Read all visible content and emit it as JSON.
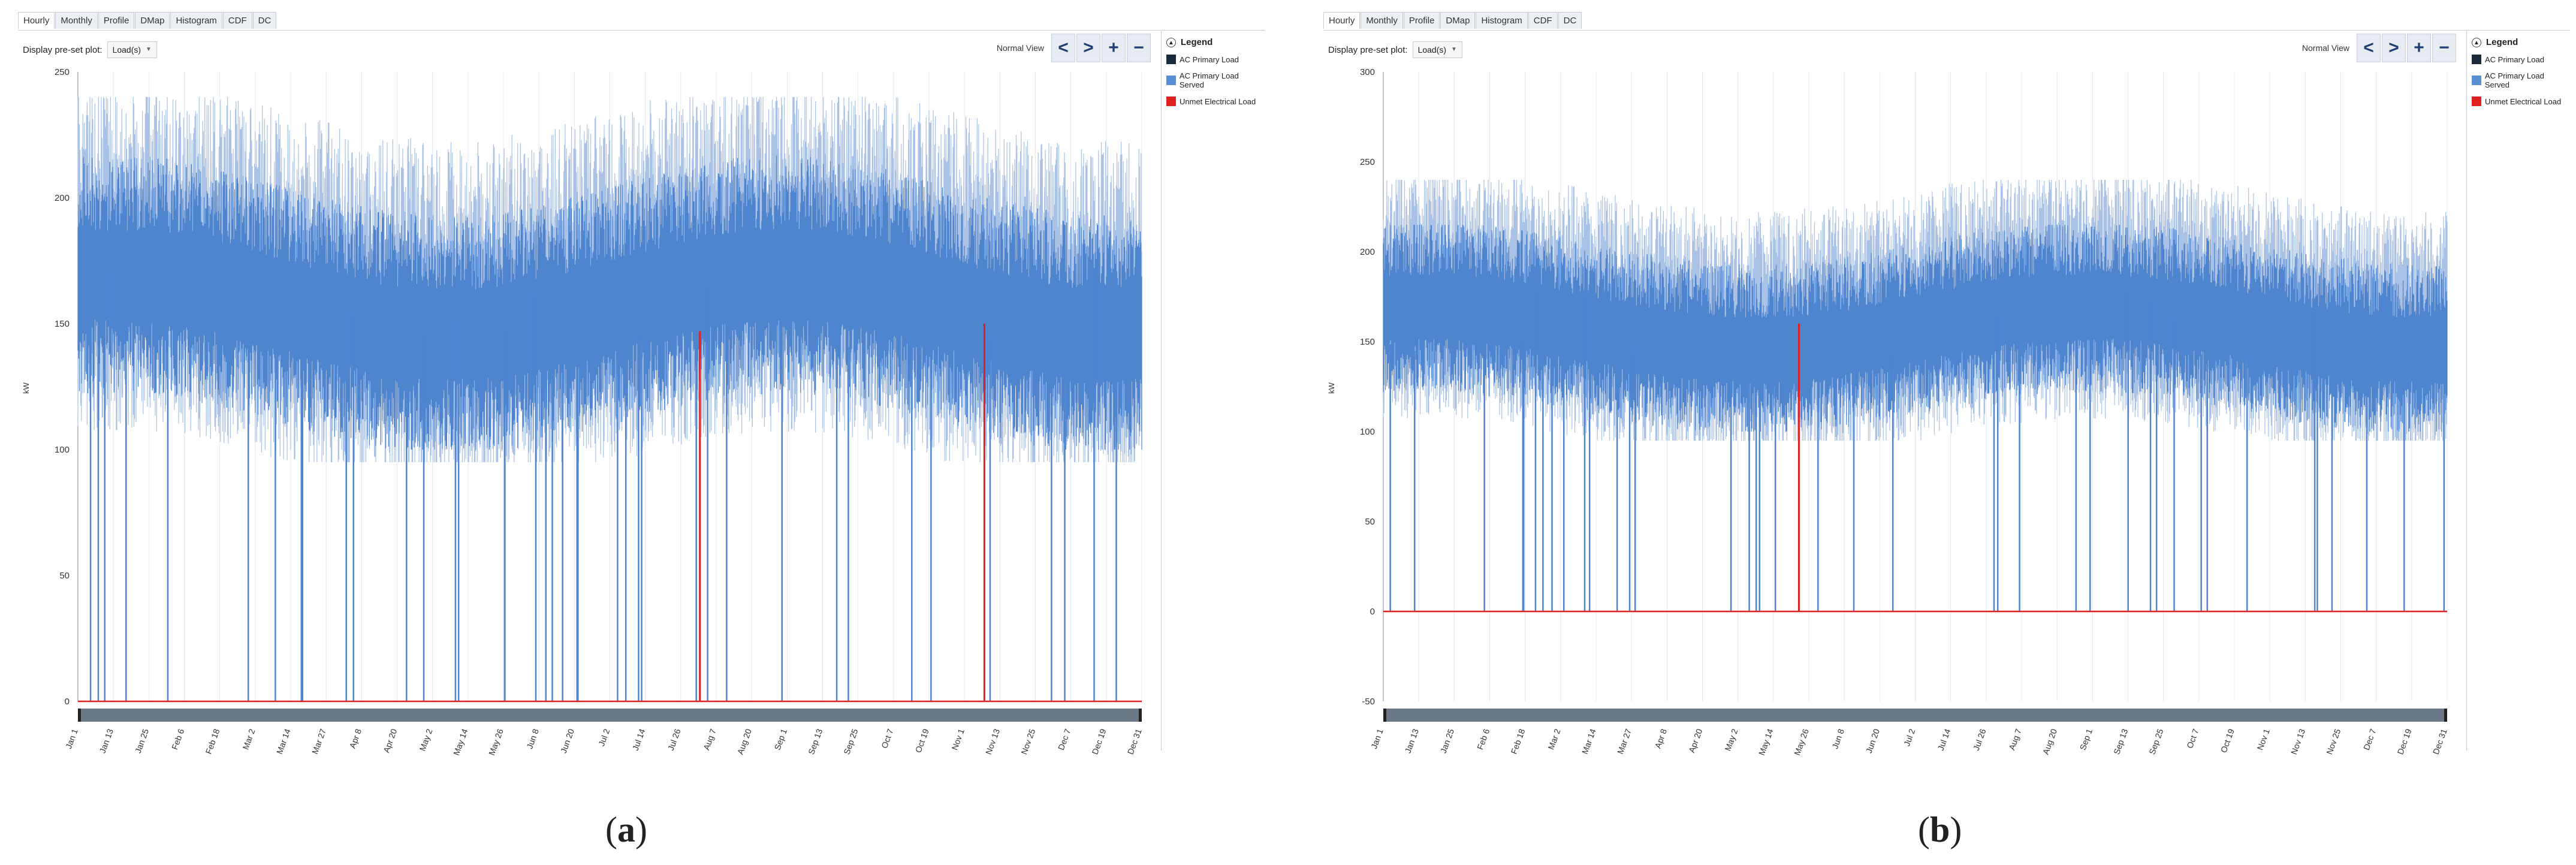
{
  "panels": [
    {
      "id": "a",
      "tabs": [
        "Hourly",
        "Monthly",
        "Profile",
        "DMap",
        "Histogram",
        "CDF",
        "DC"
      ],
      "active_tab": "Hourly",
      "preset_label": "Display pre-set plot:",
      "preset_value": "Load(s)",
      "view_label": "Normal View",
      "nav_buttons": [
        "<",
        ">",
        "+",
        "−"
      ],
      "legend_title": "Legend",
      "legend": [
        {
          "label": "AC Primary Load",
          "color": "#1b2a3a"
        },
        {
          "label": "AC Primary Load Served",
          "color": "#5b8fd4"
        },
        {
          "label": "Unmet Electrical Load",
          "color": "#e02020"
        }
      ],
      "y_axis_title": "kW",
      "caption": "a",
      "chart_data": {
        "type": "line",
        "title": "",
        "xlabel": "",
        "ylabel": "kW",
        "ylim": [
          0,
          250
        ],
        "yticks": [
          0,
          50,
          100,
          150,
          200,
          250
        ],
        "x_tick_labels": [
          "Jan 1",
          "Jan 13",
          "Jan 25",
          "Feb 6",
          "Feb 18",
          "Mar 2",
          "Mar 14",
          "Mar 27",
          "Apr 8",
          "Apr 20",
          "May 2",
          "May 14",
          "May 26",
          "Jun 8",
          "Jun 20",
          "Jul 2",
          "Jul 14",
          "Jul 26",
          "Aug 7",
          "Aug 20",
          "Sep 1",
          "Sep 13",
          "Sep 25",
          "Oct 7",
          "Oct 19",
          "Nov 1",
          "Nov 13",
          "Nov 25",
          "Dec 7",
          "Dec 19",
          "Dec 31"
        ],
        "series": [
          {
            "name": "AC Primary Load",
            "color": "#a9c2e6",
            "approx_band_kw": [
              95,
              240
            ]
          },
          {
            "name": "AC Primary Load Served",
            "color": "#4f85cf",
            "approx_band_kw": [
              100,
              220
            ]
          },
          {
            "name": "Unmet Electrical Load",
            "color": "#e02020",
            "baseline_kw": 0,
            "spikes": [
              {
                "date": "Jul 31",
                "kw": 147
              },
              {
                "date": "Nov 7",
                "kw": 150
              }
            ]
          }
        ]
      }
    },
    {
      "id": "b",
      "tabs": [
        "Hourly",
        "Monthly",
        "Profile",
        "DMap",
        "Histogram",
        "CDF",
        "DC"
      ],
      "active_tab": "Hourly",
      "preset_label": "Display pre-set plot:",
      "preset_value": "Load(s)",
      "view_label": "Normal View",
      "nav_buttons": [
        "<",
        ">",
        "+",
        "−"
      ],
      "legend_title": "Legend",
      "legend": [
        {
          "label": "AC Primary Load",
          "color": "#1b2a3a"
        },
        {
          "label": "AC Primary Load Served",
          "color": "#5b8fd4"
        },
        {
          "label": "Unmet Electrical Load",
          "color": "#e02020"
        }
      ],
      "y_axis_title": "kW",
      "caption": "b",
      "chart_data": {
        "type": "line",
        "title": "",
        "xlabel": "",
        "ylabel": "kW",
        "ylim": [
          -50,
          300
        ],
        "yticks": [
          -50,
          0,
          50,
          100,
          150,
          200,
          250,
          300
        ],
        "x_tick_labels": [
          "Jan 1",
          "Jan 13",
          "Jan 25",
          "Feb 6",
          "Feb 18",
          "Mar 2",
          "Mar 14",
          "Mar 27",
          "Apr 8",
          "Apr 20",
          "May 2",
          "May 14",
          "May 26",
          "Jun 8",
          "Jun 20",
          "Jul 2",
          "Jul 14",
          "Jul 26",
          "Aug 7",
          "Aug 20",
          "Sep 1",
          "Sep 13",
          "Sep 25",
          "Oct 7",
          "Oct 19",
          "Nov 1",
          "Nov 13",
          "Nov 25",
          "Dec 7",
          "Dec 19",
          "Dec 31"
        ],
        "series": [
          {
            "name": "AC Primary Load",
            "color": "#a9c2e6",
            "approx_band_kw": [
              95,
              240
            ]
          },
          {
            "name": "AC Primary Load Served",
            "color": "#4f85cf",
            "approx_band_kw": [
              100,
              215
            ]
          },
          {
            "name": "Unmet Electrical Load",
            "color": "#e02020",
            "baseline_kw": 0,
            "spikes": [
              {
                "date": "May 21",
                "kw": 160
              }
            ]
          }
        ]
      }
    }
  ]
}
